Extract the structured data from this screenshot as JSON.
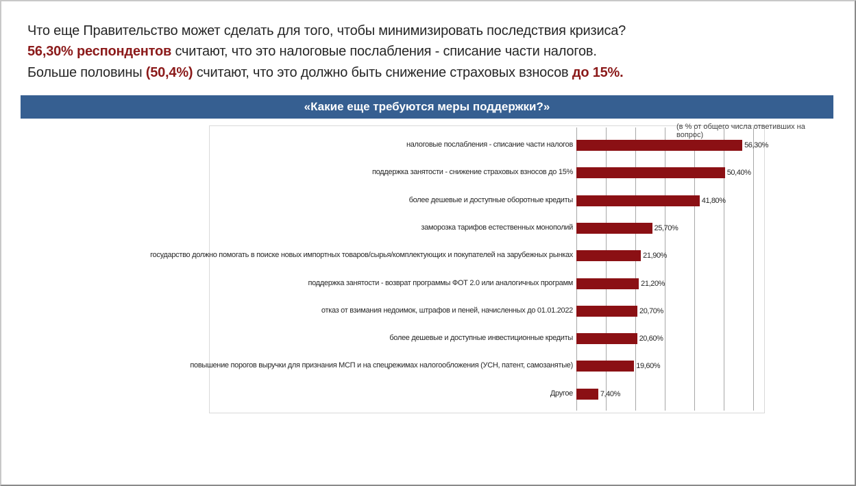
{
  "headline": {
    "line1": "Что еще Правительство может сделать для того, чтобы минимизировать последствия кризиса?",
    "line2_bold": "56,30% респондентов",
    "line2_rest": " считают, что это налоговые послабления - списание части налогов.",
    "line3_start": "Больше половины ",
    "line3_bold": "(50,4%)",
    "line3_mid": " считают, что это должно быть снижение страховых взносов ",
    "line3_bold2": "до 15%."
  },
  "colors": {
    "bar": "#8b1014",
    "banner": "#365f91",
    "accent": "#8b1a1a"
  },
  "chart_data": {
    "type": "bar",
    "orientation": "horizontal",
    "title": "«Какие еще требуются меры поддержки?»",
    "note": "(в % от  общего числа ответивших на вопрос)",
    "xlim": [
      0,
      60
    ],
    "grid_step": 10,
    "grid": true,
    "categories": [
      "налоговые послабления - списание части налогов",
      "поддержка занятости - снижение страховых взносов до 15%",
      "более дешевые и доступные оборотные кредиты",
      "заморозка тарифов естественных монополий",
      "государство должно помогать в поиске новых импортных товаров/сырья/комплектующих и покупателей на зарубежных рынках",
      "поддержка занятости -  возврат программы ФОТ 2.0 или аналогичных программ",
      "отказ от взимания недоимок, штрафов и пеней, начисленных до 01.01.2022",
      "более дешевые и доступные инвестиционные кредиты",
      "повышение порогов выручки для признания МСП и на спецрежимах налогообложения (УСН, патент, самозанятые)",
      "Другое"
    ],
    "values": [
      56.3,
      50.4,
      41.8,
      25.7,
      21.9,
      21.2,
      20.7,
      20.6,
      19.6,
      7.4
    ],
    "value_labels": [
      "56,30%",
      "50,40%",
      "41,80%",
      "25,70%",
      "21,90%",
      "21,20%",
      "20,70%",
      "20,60%",
      "19,60%",
      "7,40%"
    ]
  }
}
